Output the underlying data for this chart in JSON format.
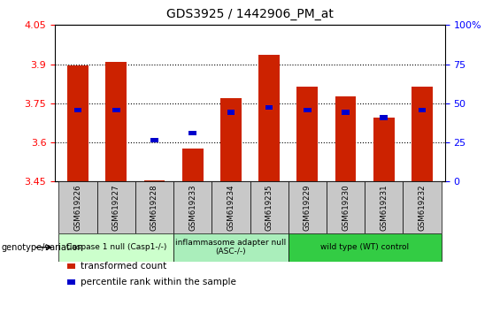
{
  "title": "GDS3925 / 1442906_PM_at",
  "samples": [
    "GSM619226",
    "GSM619227",
    "GSM619228",
    "GSM619233",
    "GSM619234",
    "GSM619235",
    "GSM619229",
    "GSM619230",
    "GSM619231",
    "GSM619232"
  ],
  "bar_values": [
    3.895,
    3.91,
    3.455,
    3.575,
    3.77,
    3.935,
    3.815,
    3.775,
    3.695,
    3.815
  ],
  "blue_values": [
    3.725,
    3.725,
    3.608,
    3.635,
    3.715,
    3.735,
    3.725,
    3.715,
    3.695,
    3.725
  ],
  "ylim": [
    3.45,
    4.05
  ],
  "y2lim": [
    0,
    100
  ],
  "yticks": [
    3.45,
    3.6,
    3.75,
    3.9,
    4.05
  ],
  "y2ticks": [
    0,
    25,
    50,
    75,
    100
  ],
  "bar_color": "#cc2200",
  "blue_color": "#0000cc",
  "bar_bottom": 3.45,
  "groups": [
    {
      "label": "Caspase 1 null (Casp1-/-)",
      "start": 0,
      "end": 3,
      "color": "#ccffcc"
    },
    {
      "label": "inflammasome adapter null\n(ASC-/-)",
      "start": 3,
      "end": 6,
      "color": "#aaeebb"
    },
    {
      "label": "wild type (WT) control",
      "start": 6,
      "end": 10,
      "color": "#33cc44"
    }
  ],
  "xlabel_row_color": "#c8c8c8",
  "genotype_label": "genotype/variation",
  "legend_items": [
    {
      "color": "#cc2200",
      "label": "transformed count"
    },
    {
      "color": "#0000cc",
      "label": "percentile rank within the sample"
    }
  ]
}
